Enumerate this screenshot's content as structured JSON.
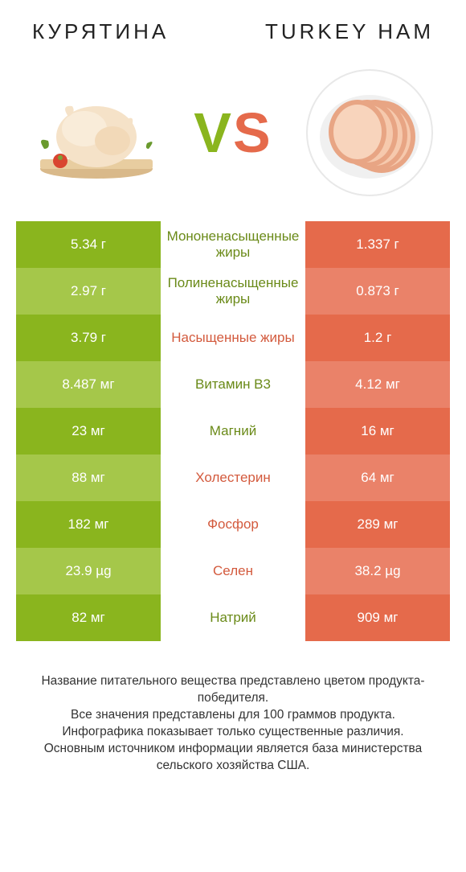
{
  "colors": {
    "green_dark": "#8ab51e",
    "green_light": "#a5c74a",
    "orange_dark": "#e56a4b",
    "orange_light": "#ea8269",
    "label_green": "#6a8a18",
    "label_orange": "#d35a3d",
    "bg": "#ffffff"
  },
  "header": {
    "left": "КУРЯТИНА",
    "right": "TURKEY HAM"
  },
  "vs": {
    "v": "V",
    "s": "S"
  },
  "rows": [
    {
      "left": "5.34 г",
      "label": "Мононенасыщенные жиры",
      "right": "1.337 г",
      "winner": "left"
    },
    {
      "left": "2.97 г",
      "label": "Полиненасыщенные жиры",
      "right": "0.873 г",
      "winner": "left"
    },
    {
      "left": "3.79 г",
      "label": "Насыщенные жиры",
      "right": "1.2 г",
      "winner": "right"
    },
    {
      "left": "8.487 мг",
      "label": "Витамин B3",
      "right": "4.12 мг",
      "winner": "left"
    },
    {
      "left": "23 мг",
      "label": "Магний",
      "right": "16 мг",
      "winner": "left"
    },
    {
      "left": "88 мг",
      "label": "Холестерин",
      "right": "64 мг",
      "winner": "right"
    },
    {
      "left": "182 мг",
      "label": "Фосфор",
      "right": "289 мг",
      "winner": "right"
    },
    {
      "left": "23.9 µg",
      "label": "Селен",
      "right": "38.2 µg",
      "winner": "right"
    },
    {
      "left": "82 мг",
      "label": "Натрий",
      "right": "909 мг",
      "winner": "left"
    }
  ],
  "footer": {
    "l1": "Название питательного вещества представлено цветом продукта-победителя.",
    "l2": "Все значения представлены для 100 граммов продукта.",
    "l3": "Инфографика показывает только существенные различия.",
    "l4": "Основным источником информации является база министерства сельского хозяйства США."
  }
}
